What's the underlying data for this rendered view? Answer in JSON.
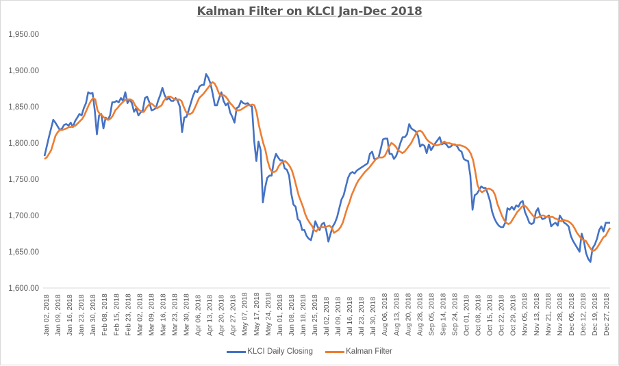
{
  "chart_data": {
    "type": "line",
    "title": "Kalman Filter on KLCI Jan-Dec 2018",
    "xlabel": "",
    "ylabel": "",
    "ylim": [
      1600,
      1950
    ],
    "yticks": [
      "1,600.00",
      "1,650.00",
      "1,700.00",
      "1,750.00",
      "1,800.00",
      "1,850.00",
      "1,900.00",
      "1,950.00"
    ],
    "grid": false,
    "legend_position": "bottom",
    "x_tick_labels": [
      "Jan 02, 2018",
      "Jan 09, 2018",
      "Jan 16, 2018",
      "Jan 23, 2018",
      "Jan 30, 2018",
      "Feb 08, 2018",
      "Feb 15, 2018",
      "Feb 23, 2018",
      "Mar 02, 2018",
      "Mar 09, 2018",
      "Mar 16, 2018",
      "Mar 23, 2018",
      "Mar 30, 2018",
      "Apr 06, 2018",
      "Apr 13, 2018",
      "Apr 20, 2018",
      "Apr 27, 2018",
      "May 07, 2018",
      "May 17, 2018",
      "May 24, 2018",
      "Jun 01, 2018",
      "Jun 08, 2018",
      "Jun 18, 2018",
      "Jun 25, 2018",
      "Jul 02, 2018",
      "Jul 09, 2018",
      "Jul 16, 2018",
      "Jul 23, 2018",
      "Jul 30, 2018",
      "Aug 06, 2018",
      "Aug 13, 2018",
      "Aug 20, 2018",
      "Aug 28, 2018",
      "Sep 05, 2018",
      "Sep 14, 2018",
      "Sep 24, 2018",
      "Oct 01, 2018",
      "Oct 08, 2018",
      "Oct 15, 2018",
      "Oct 22, 2018",
      "Oct 29, 2018",
      "Nov 05, 2018",
      "Nov 13, 2018",
      "Nov 21, 2018",
      "Nov 28, 2018",
      "Dec 05, 2018",
      "Dec 12, 2018",
      "Dec 19, 2018",
      "Dec 27, 2018"
    ],
    "series": [
      {
        "name": "KLCI Daily Closing",
        "color": "#4472c4",
        "values": [
          1782,
          1795,
          1808,
          1820,
          1832,
          1828,
          1823,
          1818,
          1820,
          1825,
          1826,
          1824,
          1828,
          1822,
          1830,
          1835,
          1840,
          1838,
          1848,
          1855,
          1870,
          1868,
          1869,
          1845,
          1812,
          1838,
          1840,
          1820,
          1835,
          1832,
          1838,
          1856,
          1856,
          1858,
          1856,
          1862,
          1858,
          1870,
          1855,
          1860,
          1855,
          1843,
          1848,
          1838,
          1842,
          1845,
          1862,
          1864,
          1856,
          1845,
          1846,
          1848,
          1858,
          1866,
          1876,
          1866,
          1860,
          1862,
          1858,
          1858,
          1862,
          1858,
          1850,
          1815,
          1835,
          1836,
          1845,
          1855,
          1865,
          1872,
          1870,
          1878,
          1880,
          1880,
          1895,
          1890,
          1882,
          1868,
          1852,
          1852,
          1862,
          1870,
          1858,
          1852,
          1855,
          1842,
          1836,
          1828,
          1848,
          1850,
          1858,
          1855,
          1854,
          1855,
          1852,
          1850,
          1803,
          1775,
          1802,
          1790,
          1718,
          1738,
          1752,
          1755,
          1755,
          1775,
          1785,
          1780,
          1776,
          1776,
          1765,
          1763,
          1755,
          1730,
          1715,
          1712,
          1695,
          1692,
          1680,
          1680,
          1672,
          1668,
          1666,
          1678,
          1692,
          1685,
          1680,
          1688,
          1690,
          1680,
          1664,
          1675,
          1685,
          1690,
          1698,
          1710,
          1722,
          1728,
          1740,
          1752,
          1758,
          1760,
          1758,
          1762,
          1764,
          1766,
          1768,
          1770,
          1772,
          1785,
          1788,
          1778,
          1778,
          1780,
          1792,
          1805,
          1806,
          1806,
          1785,
          1785,
          1778,
          1782,
          1790,
          1800,
          1808,
          1808,
          1812,
          1826,
          1820,
          1818,
          1816,
          1810,
          1795,
          1798,
          1796,
          1786,
          1798,
          1790,
          1795,
          1800,
          1804,
          1808,
          1798,
          1800,
          1798,
          1794,
          1795,
          1798,
          1798,
          1795,
          1790,
          1788,
          1778,
          1776,
          1775,
          1755,
          1708,
          1728,
          1730,
          1735,
          1740,
          1738,
          1738,
          1730,
          1720,
          1705,
          1696,
          1690,
          1686,
          1684,
          1684,
          1690,
          1710,
          1708,
          1712,
          1708,
          1714,
          1712,
          1718,
          1720,
          1705,
          1698,
          1690,
          1688,
          1690,
          1705,
          1710,
          1700,
          1695,
          1696,
          1698,
          1700,
          1685,
          1688,
          1690,
          1686,
          1700,
          1695,
          1690,
          1688,
          1685,
          1672,
          1665,
          1660,
          1655,
          1650,
          1675,
          1665,
          1648,
          1640,
          1636,
          1655,
          1660,
          1668,
          1680,
          1685,
          1678,
          1690,
          1690,
          1690
        ]
      },
      {
        "name": "Kalman Filter",
        "color": "#ed7d31",
        "values": [
          1778,
          1780,
          1785,
          1790,
          1800,
          1810,
          1815,
          1818,
          1818,
          1819,
          1820,
          1822,
          1822,
          1823,
          1824,
          1827,
          1830,
          1833,
          1838,
          1845,
          1852,
          1858,
          1862,
          1860,
          1845,
          1840,
          1838,
          1835,
          1833,
          1832,
          1834,
          1838,
          1845,
          1848,
          1852,
          1855,
          1858,
          1860,
          1860,
          1860,
          1858,
          1852,
          1848,
          1845,
          1843,
          1843,
          1848,
          1852,
          1855,
          1853,
          1850,
          1848,
          1850,
          1852,
          1858,
          1862,
          1864,
          1864,
          1862,
          1860,
          1860,
          1860,
          1858,
          1850,
          1843,
          1840,
          1840,
          1842,
          1848,
          1855,
          1862,
          1865,
          1868,
          1872,
          1876,
          1880,
          1884,
          1882,
          1876,
          1868,
          1865,
          1866,
          1864,
          1860,
          1855,
          1852,
          1848,
          1845,
          1845,
          1846,
          1848,
          1850,
          1852,
          1852,
          1853,
          1852,
          1842,
          1825,
          1812,
          1800,
          1790,
          1775,
          1765,
          1760,
          1760,
          1762,
          1768,
          1772,
          1774,
          1775,
          1772,
          1768,
          1762,
          1752,
          1740,
          1728,
          1720,
          1712,
          1702,
          1695,
          1690,
          1686,
          1680,
          1678,
          1682,
          1684,
          1684,
          1684,
          1685,
          1686,
          1683,
          1676,
          1678,
          1680,
          1684,
          1690,
          1700,
          1710,
          1718,
          1728,
          1735,
          1742,
          1748,
          1752,
          1756,
          1760,
          1763,
          1766,
          1770,
          1774,
          1778,
          1780,
          1780,
          1780,
          1782,
          1788,
          1795,
          1800,
          1798,
          1795,
          1790,
          1788,
          1786,
          1788,
          1792,
          1796,
          1800,
          1806,
          1812,
          1816,
          1817,
          1815,
          1810,
          1805,
          1802,
          1800,
          1798,
          1797,
          1797,
          1798,
          1800,
          1802,
          1800,
          1800,
          1799,
          1798,
          1797,
          1797,
          1797,
          1796,
          1795,
          1793,
          1790,
          1785,
          1776,
          1760,
          1742,
          1735,
          1732,
          1734,
          1736,
          1737,
          1736,
          1734,
          1728,
          1716,
          1708,
          1700,
          1694,
          1690,
          1688,
          1690,
          1695,
          1700,
          1705,
          1708,
          1712,
          1714,
          1712,
          1708,
          1704,
          1700,
          1697,
          1697,
          1698,
          1700,
          1700,
          1698,
          1698,
          1698,
          1698,
          1696,
          1695,
          1693,
          1692,
          1694,
          1693,
          1692,
          1690,
          1687,
          1682,
          1676,
          1672,
          1668,
          1666,
          1665,
          1660,
          1655,
          1651,
          1652,
          1655,
          1660,
          1665,
          1670,
          1672,
          1678,
          1683
        ]
      }
    ]
  },
  "legend": {
    "items": [
      {
        "label": "KLCI Daily Closing",
        "color": "#4472c4"
      },
      {
        "label": "Kalman Filter",
        "color": "#ed7d31"
      }
    ]
  }
}
